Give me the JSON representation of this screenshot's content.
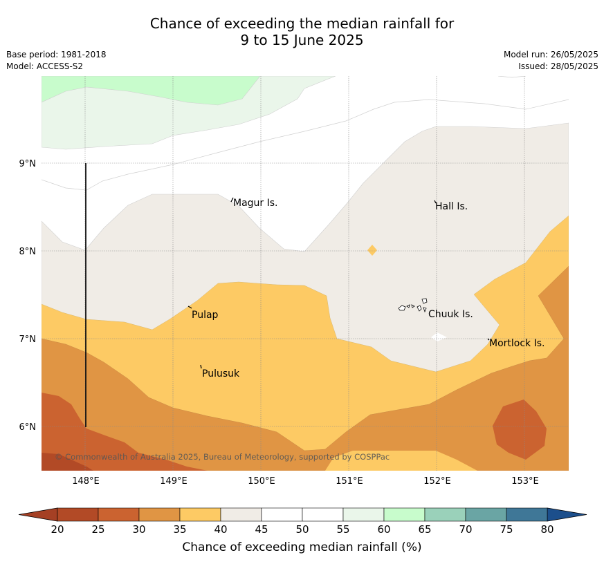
{
  "title": {
    "line1": "Chance of exceeding the median rainfall for",
    "line2": "9 to 15 June 2025"
  },
  "meta": {
    "base_period": "Base period: 1981-2018",
    "model": "Model: ACCESS-S2",
    "model_run": "Model run: 26/05/2025",
    "issued": "Issued: 28/05/2025"
  },
  "map": {
    "lon_ticks": [
      "148°E",
      "149°E",
      "150°E",
      "151°E",
      "152°E",
      "153°E"
    ],
    "lat_ticks": [
      "9°N",
      "8°N",
      "7°N",
      "6°N"
    ],
    "places": [
      {
        "name": "Magur Is.",
        "lon": 149.67,
        "lat": 8.55
      },
      {
        "name": "Hall Is.",
        "lon": 151.97,
        "lat": 8.52
      },
      {
        "name": "Pulap",
        "lon": 149.2,
        "lat": 7.27
      },
      {
        "name": "Chuuk Is.",
        "lon": 151.85,
        "lat": 7.3
      },
      {
        "name": "Mortlock Is.",
        "lon": 152.6,
        "lat": 6.99
      },
      {
        "name": "Pulusuk",
        "lon": 149.3,
        "lat": 6.63
      }
    ],
    "copyright": "© Commonwealth of Australia 2025, Bureau of Meteorology, supported by COSPPac"
  },
  "colorbar": {
    "ticks": [
      "20",
      "25",
      "30",
      "35",
      "40",
      "45",
      "50",
      "55",
      "60",
      "65",
      "70",
      "75",
      "80"
    ],
    "colors": [
      "#b24a26",
      "#cb6330",
      "#e09544",
      "#fdca64",
      "#f0ece6",
      "#ffffff",
      "#ffffff",
      "#eaf6ea",
      "#c8fccc",
      "#9ad1ba",
      "#6aa5a4",
      "#3f7797"
    ],
    "under_color": "#a54024",
    "over_color": "#1c4f8c",
    "label": "Chance of exceeding median rainfall (%)"
  }
}
